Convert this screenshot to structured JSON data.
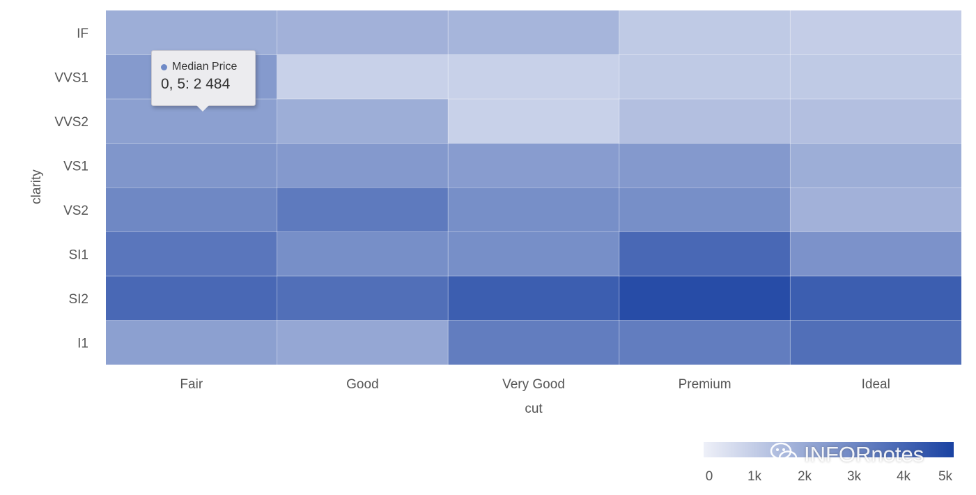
{
  "chart_data": {
    "type": "heatmap",
    "xlabel": "cut",
    "ylabel": "clarity",
    "x_categories": [
      "Fair",
      "Good",
      "Very Good",
      "Premium",
      "Ideal"
    ],
    "y_categories": [
      "IF",
      "VVS1",
      "VVS2",
      "VS1",
      "VS2",
      "SI1",
      "SI2",
      "I1"
    ],
    "series_name": "Median Price",
    "values": [
      [
        1900,
        1800,
        1700,
        1100,
        1000
      ],
      [
        2484,
        900,
        900,
        1100,
        1100
      ],
      [
        2300,
        1900,
        900,
        1400,
        1400
      ],
      [
        2600,
        2500,
        2400,
        2500,
        1900
      ],
      [
        3000,
        3400,
        2800,
        2800,
        1800
      ],
      [
        3500,
        2800,
        2800,
        3900,
        2700
      ],
      [
        3900,
        3700,
        4200,
        4700,
        4200
      ],
      [
        2300,
        2100,
        3300,
        3300,
        3700
      ]
    ],
    "colorscale": {
      "min": 0,
      "max": 5000,
      "low_color": "#eef0f8",
      "high_color": "#1a42a2"
    },
    "colorbar": {
      "ticks": [
        "0",
        "1k",
        "2k",
        "3k",
        "4k",
        "5k"
      ],
      "placement": "bottom-right"
    },
    "tooltip": {
      "series": "Median Price",
      "text": "0, 5: 2 484",
      "color": "#6f8ac7"
    }
  },
  "watermark": {
    "text": "INFORnotes",
    "icon": "wechat-icon"
  }
}
